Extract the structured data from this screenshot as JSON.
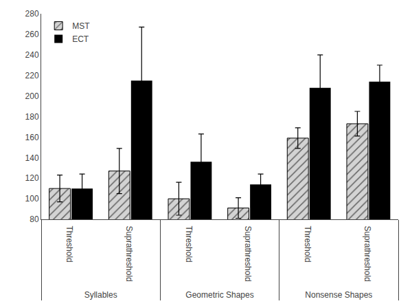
{
  "chart_data": {
    "type": "bar",
    "categories": [
      [
        "Syllables",
        "Threshold"
      ],
      [
        "Syllables",
        "Suprathreshold"
      ],
      [
        "Geometric Shapes",
        "Threshold"
      ],
      [
        "Geometric Shapes",
        "Suprathreshold"
      ],
      [
        "Nonsense Shapes",
        "Threshold"
      ],
      [
        "Nonsense Shapes",
        "Suprathreshold"
      ]
    ],
    "series": [
      {
        "name": "MST",
        "color": "#d3d3d3",
        "values": [
          110,
          127,
          100,
          91,
          159,
          173
        ],
        "errors": [
          13,
          22,
          16,
          10,
          10,
          12
        ]
      },
      {
        "name": "ECT",
        "color": "#000000",
        "values": [
          110,
          215,
          136,
          114,
          208,
          214
        ],
        "errors": [
          14,
          52,
          27,
          10,
          32,
          16
        ]
      }
    ],
    "ylim": [
      80,
      280
    ],
    "yticks": [
      80,
      100,
      120,
      140,
      160,
      180,
      200,
      220,
      240,
      260,
      280
    ],
    "grid": false,
    "legend": "upper left"
  }
}
